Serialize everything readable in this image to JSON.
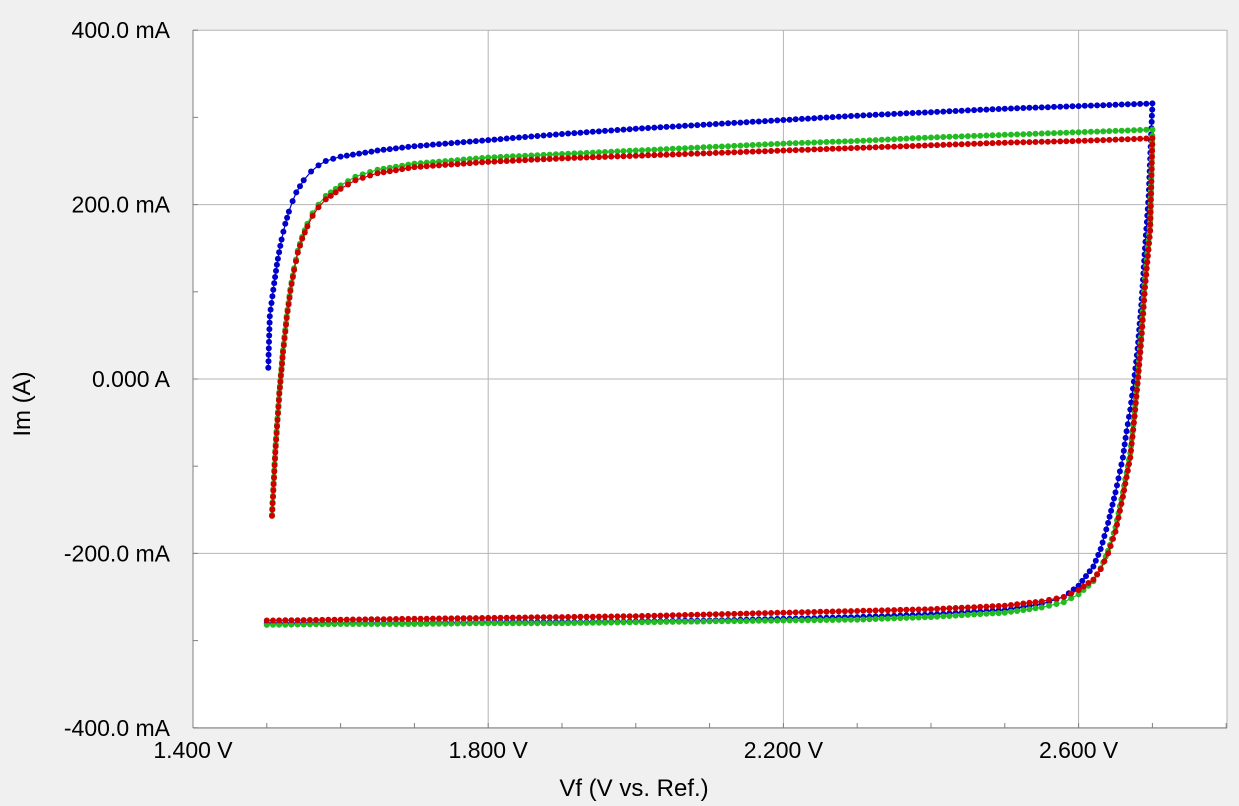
{
  "chart_data": {
    "type": "scatter",
    "xlabel": "Vf (V vs. Ref.)",
    "ylabel": "Im (A)",
    "xlim": [
      1.4,
      2.8
    ],
    "ylim": [
      -0.4,
      0.4
    ],
    "x_ticks": [
      1.4,
      1.8,
      2.2,
      2.6
    ],
    "x_tick_labels": [
      "1.400 V",
      "1.800 V",
      "2.200 V",
      "2.600 V"
    ],
    "y_ticks": [
      0.4,
      0.2,
      0.0,
      -0.2,
      -0.4
    ],
    "y_tick_labels": [
      "400.0 mA",
      "200.0 mA",
      "0.000 A",
      "-200.0 mA",
      "-400.0 mA"
    ],
    "grid": true,
    "legend": "none",
    "series": [
      {
        "color": "#0000cc",
        "points": [
          [
            1.502,
            0.013
          ],
          [
            1.504,
            0.072
          ],
          [
            1.51,
            0.11
          ],
          [
            1.515,
            0.138
          ],
          [
            1.52,
            0.16
          ],
          [
            1.525,
            0.178
          ],
          [
            1.53,
            0.192
          ],
          [
            1.535,
            0.204
          ],
          [
            1.54,
            0.214
          ],
          [
            1.55,
            0.228
          ],
          [
            1.56,
            0.238
          ],
          [
            1.57,
            0.245
          ],
          [
            1.58,
            0.25
          ],
          [
            1.6,
            0.255
          ],
          [
            1.65,
            0.262
          ],
          [
            1.7,
            0.267
          ],
          [
            1.8,
            0.274
          ],
          [
            1.9,
            0.281
          ],
          [
            2.0,
            0.287
          ],
          [
            2.1,
            0.292
          ],
          [
            2.2,
            0.297
          ],
          [
            2.3,
            0.302
          ],
          [
            2.4,
            0.306
          ],
          [
            2.5,
            0.31
          ],
          [
            2.6,
            0.313
          ],
          [
            2.7,
            0.316
          ],
          [
            2.695,
            0.21
          ],
          [
            2.69,
            0.15
          ],
          [
            2.685,
            0.085
          ],
          [
            2.68,
            0.035
          ],
          [
            2.675,
            -0.003
          ],
          [
            2.67,
            -0.035
          ],
          [
            2.665,
            -0.06
          ],
          [
            2.66,
            -0.09
          ],
          [
            2.65,
            -0.13
          ],
          [
            2.64,
            -0.165
          ],
          [
            2.63,
            -0.195
          ],
          [
            2.62,
            -0.215
          ],
          [
            2.6,
            -0.237
          ],
          [
            2.58,
            -0.25
          ],
          [
            2.55,
            -0.258
          ],
          [
            2.5,
            -0.265
          ],
          [
            2.4,
            -0.27
          ],
          [
            2.3,
            -0.273
          ],
          [
            2.2,
            -0.275
          ],
          [
            2.1,
            -0.277
          ],
          [
            2.0,
            -0.278
          ],
          [
            1.9,
            -0.279
          ],
          [
            1.8,
            -0.279
          ],
          [
            1.7,
            -0.28
          ],
          [
            1.6,
            -0.28
          ],
          [
            1.5,
            -0.28
          ]
        ]
      },
      {
        "color": "#22bb22",
        "points": [
          [
            1.507,
            -0.156
          ],
          [
            1.512,
            -0.075
          ],
          [
            1.517,
            -0.015
          ],
          [
            1.522,
            0.033
          ],
          [
            1.527,
            0.072
          ],
          [
            1.532,
            0.103
          ],
          [
            1.537,
            0.127
          ],
          [
            1.542,
            0.147
          ],
          [
            1.548,
            0.163
          ],
          [
            1.555,
            0.178
          ],
          [
            1.562,
            0.19
          ],
          [
            1.57,
            0.2
          ],
          [
            1.58,
            0.21
          ],
          [
            1.6,
            0.222
          ],
          [
            1.62,
            0.232
          ],
          [
            1.65,
            0.24
          ],
          [
            1.7,
            0.247
          ],
          [
            1.8,
            0.254
          ],
          [
            1.9,
            0.258
          ],
          [
            2.0,
            0.262
          ],
          [
            2.1,
            0.266
          ],
          [
            2.2,
            0.27
          ],
          [
            2.3,
            0.273
          ],
          [
            2.4,
            0.277
          ],
          [
            2.5,
            0.28
          ],
          [
            2.6,
            0.283
          ],
          [
            2.7,
            0.286
          ],
          [
            2.697,
            0.18
          ],
          [
            2.69,
            0.115
          ],
          [
            2.685,
            0.055
          ],
          [
            2.68,
            0.0
          ],
          [
            2.675,
            -0.045
          ],
          [
            2.67,
            -0.085
          ],
          [
            2.66,
            -0.13
          ],
          [
            2.65,
            -0.17
          ],
          [
            2.64,
            -0.197
          ],
          [
            2.63,
            -0.217
          ],
          [
            2.62,
            -0.232
          ],
          [
            2.6,
            -0.247
          ],
          [
            2.58,
            -0.256
          ],
          [
            2.55,
            -0.262
          ],
          [
            2.5,
            -0.268
          ],
          [
            2.4,
            -0.273
          ],
          [
            2.3,
            -0.276
          ],
          [
            2.2,
            -0.277
          ],
          [
            2.1,
            -0.278
          ],
          [
            2.0,
            -0.279
          ],
          [
            1.9,
            -0.28
          ],
          [
            1.8,
            -0.28
          ],
          [
            1.7,
            -0.281
          ],
          [
            1.6,
            -0.281
          ],
          [
            1.5,
            -0.282
          ]
        ]
      },
      {
        "color": "#cc0000",
        "points": [
          [
            1.507,
            -0.157
          ],
          [
            1.512,
            -0.077
          ],
          [
            1.517,
            -0.017
          ],
          [
            1.522,
            0.031
          ],
          [
            1.527,
            0.07
          ],
          [
            1.532,
            0.101
          ],
          [
            1.537,
            0.125
          ],
          [
            1.542,
            0.145
          ],
          [
            1.548,
            0.161
          ],
          [
            1.555,
            0.175
          ],
          [
            1.562,
            0.187
          ],
          [
            1.57,
            0.197
          ],
          [
            1.58,
            0.206
          ],
          [
            1.6,
            0.218
          ],
          [
            1.62,
            0.228
          ],
          [
            1.65,
            0.236
          ],
          [
            1.7,
            0.243
          ],
          [
            1.8,
            0.249
          ],
          [
            1.9,
            0.253
          ],
          [
            2.0,
            0.256
          ],
          [
            2.1,
            0.259
          ],
          [
            2.2,
            0.262
          ],
          [
            2.3,
            0.265
          ],
          [
            2.4,
            0.268
          ],
          [
            2.5,
            0.271
          ],
          [
            2.6,
            0.273
          ],
          [
            2.7,
            0.276
          ],
          [
            2.697,
            0.17
          ],
          [
            2.69,
            0.105
          ],
          [
            2.685,
            0.045
          ],
          [
            2.68,
            -0.005
          ],
          [
            2.675,
            -0.05
          ],
          [
            2.67,
            -0.09
          ],
          [
            2.66,
            -0.135
          ],
          [
            2.65,
            -0.175
          ],
          [
            2.64,
            -0.2
          ],
          [
            2.63,
            -0.218
          ],
          [
            2.62,
            -0.23
          ],
          [
            2.6,
            -0.242
          ],
          [
            2.58,
            -0.25
          ],
          [
            2.55,
            -0.255
          ],
          [
            2.5,
            -0.26
          ],
          [
            2.4,
            -0.264
          ],
          [
            2.3,
            -0.266
          ],
          [
            2.2,
            -0.268
          ],
          [
            2.1,
            -0.27
          ],
          [
            2.0,
            -0.272
          ],
          [
            1.9,
            -0.273
          ],
          [
            1.8,
            -0.274
          ],
          [
            1.7,
            -0.275
          ],
          [
            1.6,
            -0.276
          ],
          [
            1.5,
            -0.277
          ]
        ]
      }
    ]
  }
}
